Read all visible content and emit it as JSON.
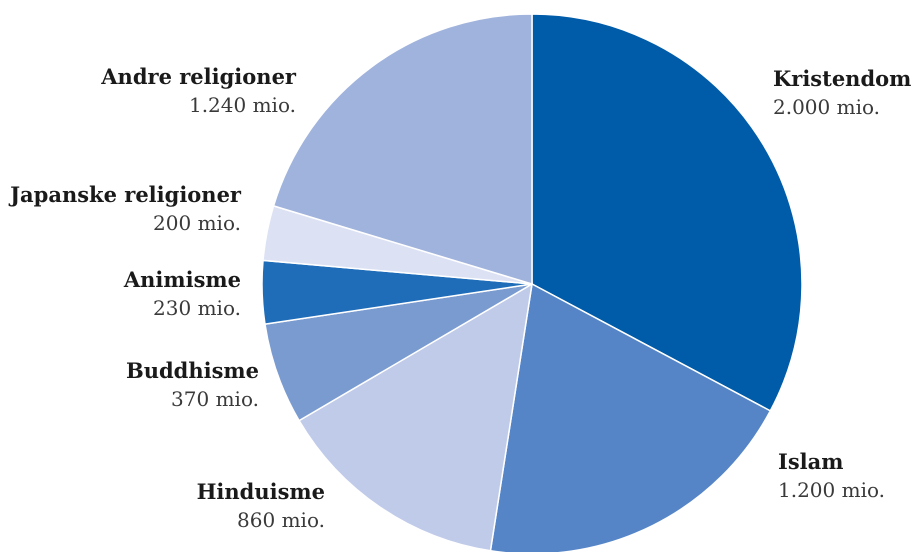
{
  "chart_data": {
    "type": "pie",
    "slices": [
      {
        "name": "Kristendom",
        "value": 2000,
        "value_label": "2.000 mio.",
        "color": "#005ba9"
      },
      {
        "name": "Islam",
        "value": 1200,
        "value_label": "1.200 mio.",
        "color": "#5585c6"
      },
      {
        "name": "Hinduisme",
        "value": 860,
        "value_label": "860 mio.",
        "color": "#c0cbea"
      },
      {
        "name": "Buddhisme",
        "value": 370,
        "value_label": "370 mio.",
        "color": "#7a9bd0"
      },
      {
        "name": "Animisme",
        "value": 230,
        "value_label": "230 mio.",
        "color": "#1f6cb8"
      },
      {
        "name": "Japanske religioner",
        "value": 200,
        "value_label": "200 mio.",
        "color": "#dce2f4"
      },
      {
        "name": "Andre religioner",
        "value": 1240,
        "value_label": "1.240 mio.",
        "color": "#a0b3dd"
      }
    ]
  }
}
